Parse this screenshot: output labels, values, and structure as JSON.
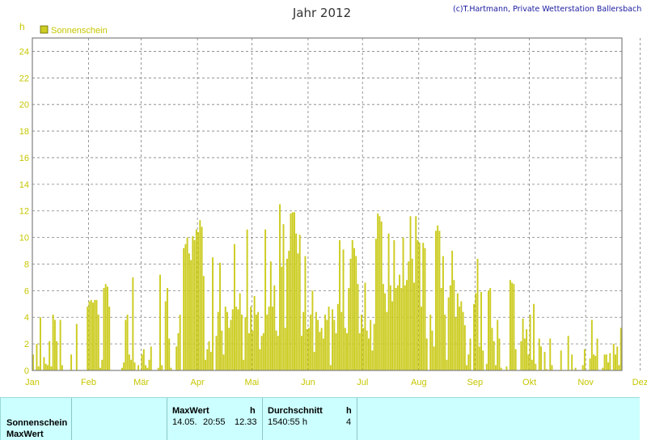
{
  "header": {
    "title": "Jahr 2012",
    "credit": "(c)T.Hartmann, Private Wetterstation Ballersbach"
  },
  "colors": {
    "bar": "#cccc22",
    "axis_text": "#c6c600",
    "grid": "#808080",
    "title": "#333333",
    "credit": "#1a1aa0",
    "table_bg": "#ccffff"
  },
  "chart_data": {
    "type": "bar",
    "title": "Jahr 2012",
    "ylabel": "h",
    "ylim": [
      0,
      25
    ],
    "yticks": [
      0,
      2,
      4,
      6,
      8,
      10,
      12,
      14,
      16,
      18,
      20,
      22,
      24
    ],
    "grid": true,
    "legend_position": "top-left",
    "x_start_label": "01.01.2012",
    "x_tick_labels": [
      "Jan",
      "Feb",
      "Mär",
      "Apr",
      "Mai",
      "Jun",
      "Jul",
      "Aug",
      "Sep",
      "Okt",
      "Nov",
      "Dez"
    ],
    "series": [
      {
        "name": "Sonnenschein",
        "values": [
          1.2,
          0,
          2,
          0.3,
          4,
          0,
          1,
          0.5,
          0.4,
          2.2,
          0.3,
          4.2,
          3.8,
          2.2,
          0,
          3.8,
          0.4,
          0,
          0,
          0,
          0,
          1.2,
          0,
          0,
          3.5,
          0,
          0,
          0,
          0,
          0,
          4.8,
          5.2,
          5.3,
          5.1,
          5.3,
          5.3,
          4.2,
          0.2,
          0.8,
          6.2,
          6.5,
          6.3,
          4.8,
          0,
          0,
          0,
          0,
          0,
          0,
          0.2,
          0.6,
          3.8,
          4.2,
          1.2,
          0.8,
          7,
          0.6,
          0,
          0.4,
          0,
          1.2,
          1.6,
          0.4,
          0.2,
          0.8,
          1.8,
          0,
          0,
          0,
          0.2,
          7.2,
          0.4,
          0,
          5.2,
          6.2,
          2.4,
          0.2,
          0,
          0,
          1.8,
          2.8,
          4.2,
          0,
          9.2,
          9.5,
          10,
          8.8,
          8.3,
          10.1,
          9.8,
          10.6,
          10.4,
          11.3,
          10.8,
          7.1,
          0.8,
          1.6,
          2.2,
          1.4,
          8.5,
          0,
          2.6,
          4.4,
          8.1,
          3,
          1.2,
          4.8,
          4.4,
          3.2,
          3.8,
          4.6,
          9.5,
          4.8,
          4.6,
          5.8,
          4.2,
          0.8,
          4,
          10.6,
          2.8,
          4.8,
          3,
          5.6,
          4.2,
          4.4,
          1.6,
          2.6,
          2.8,
          10.6,
          4.2,
          4.8,
          8.2,
          4.8,
          6.4,
          3,
          2.6,
          12.5,
          7.8,
          11,
          3.2,
          8.4,
          9,
          11.8,
          11.9,
          11.9,
          10.3,
          8.8,
          10.2,
          2.6,
          4.4,
          8.6,
          3.1,
          3.2,
          4.2,
          6,
          1.4,
          4.4,
          3.8,
          2.9,
          3.2,
          2.4,
          4.2,
          3.8,
          4.8,
          0.4,
          4.6,
          3.8,
          2.8,
          5,
          9.8,
          4.4,
          9.1,
          3.2,
          2.8,
          6.2,
          8.4,
          9.8,
          9.2,
          8.6,
          6.5,
          2.8,
          4.2,
          3.2,
          6.6,
          3,
          2.4,
          3.8,
          1.5,
          3.5,
          9.9,
          11.8,
          11.6,
          11.2,
          6.5,
          5.8,
          4.4,
          10.3,
          6.4,
          5.2,
          9.8,
          6.2,
          6.4,
          7.2,
          6.2,
          10,
          6.4,
          6.8,
          8.2,
          11.6,
          8.4,
          6.6,
          11.6,
          9.8,
          9.6,
          4.8,
          9.6,
          9.2,
          2.4,
          0,
          4.2,
          3,
          1.8,
          10.5,
          10.9,
          10.5,
          6.2,
          8.6,
          4.2,
          0.8,
          5.5,
          6.4,
          9,
          6.8,
          4,
          5.8,
          4.8,
          5.2,
          4.4,
          3.4,
          0.4,
          1.2,
          2.4,
          0,
          5,
          5.8,
          8.4,
          1.8,
          5.9,
          1.5,
          0,
          0.5,
          6,
          6.2,
          3.2,
          2.2,
          0.4,
          3.8,
          2.4,
          0.2,
          0,
          0,
          0.3,
          0,
          6.8,
          6.6,
          6.5,
          1.6,
          0,
          0,
          2.2,
          3.9,
          2.4,
          3.1,
          1.2,
          4.2,
          0.8,
          5,
          0.5,
          0,
          2.4,
          1.8,
          0,
          1.4,
          0.1,
          0,
          2.4,
          0.4,
          0,
          0,
          0,
          0,
          1.5,
          0,
          0,
          0,
          2.6,
          0,
          1.2,
          0,
          0.2,
          0,
          0,
          0,
          0.4,
          1.6,
          0,
          0,
          0.9,
          3.8,
          1.2,
          1.1,
          2.4,
          0,
          0,
          0.2,
          1.2,
          1.2,
          0.6,
          1.3,
          0,
          2,
          1.2,
          1.8,
          0.4,
          3.2
        ]
      }
    ]
  },
  "table": {
    "row_labels": [
      "Sonnenschein",
      "MaxWert"
    ],
    "max_header": "MaxWert",
    "max_unit": "h",
    "max_date": "14.05.",
    "max_time": "20:55",
    "max_value": "12.33",
    "avg_header": "Durchschnitt",
    "avg_unit": "h",
    "avg_value": "1540:55 h",
    "avg_count": "4"
  }
}
